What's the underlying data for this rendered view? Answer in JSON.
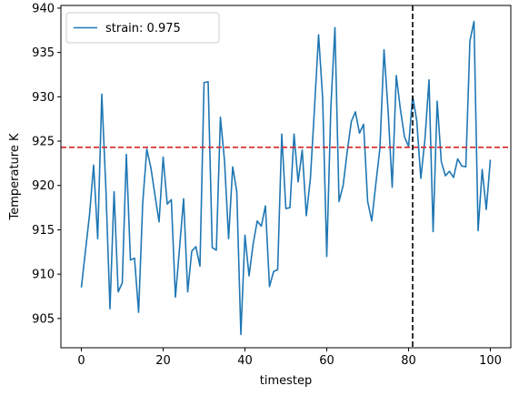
{
  "chart_data": {
    "type": "line",
    "title": "",
    "xlabel": "timestep",
    "ylabel": "Temperature K",
    "xlim": [
      -5,
      105
    ],
    "ylim": [
      901.7,
      940.3
    ],
    "xticks": [
      0,
      20,
      40,
      60,
      80,
      100
    ],
    "yticks": [
      905,
      910,
      915,
      920,
      925,
      930,
      935,
      940
    ],
    "grid": false,
    "legend_position": "upper-left",
    "series": [
      {
        "name": "strain: 0.975",
        "color": "#1f77b4",
        "x": [
          0,
          1,
          2,
          3,
          4,
          5,
          6,
          7,
          8,
          9,
          10,
          11,
          12,
          13,
          14,
          15,
          16,
          17,
          18,
          19,
          20,
          21,
          22,
          23,
          24,
          25,
          26,
          27,
          28,
          29,
          30,
          31,
          32,
          33,
          34,
          35,
          36,
          37,
          38,
          39,
          40,
          41,
          42,
          43,
          44,
          45,
          46,
          47,
          48,
          49,
          50,
          51,
          52,
          53,
          54,
          55,
          56,
          57,
          58,
          59,
          60,
          61,
          62,
          63,
          64,
          65,
          66,
          67,
          68,
          69,
          70,
          71,
          72,
          73,
          74,
          75,
          76,
          77,
          78,
          79,
          80,
          81,
          82,
          83,
          84,
          85,
          86,
          87,
          88,
          89,
          90,
          91,
          92,
          93,
          94,
          95,
          96,
          97,
          98,
          99,
          100
        ],
        "y": [
          908.5,
          912.6,
          916.7,
          922.3,
          914.0,
          930.3,
          919.6,
          906.1,
          919.3,
          908.0,
          909.0,
          923.5,
          911.6,
          911.8,
          905.7,
          918.0,
          924.1,
          922.0,
          918.9,
          915.9,
          923.2,
          917.9,
          918.4,
          907.4,
          912.9,
          918.5,
          908.0,
          912.6,
          913.1,
          910.9,
          931.6,
          931.7,
          913.0,
          912.7,
          927.7,
          922.8,
          914.0,
          922.1,
          919.3,
          903.2,
          914.4,
          909.8,
          913.4,
          916.0,
          915.4,
          917.7,
          908.6,
          910.3,
          910.5,
          925.8,
          917.4,
          917.5,
          925.8,
          920.4,
          924.0,
          916.6,
          920.8,
          928.7,
          937.0,
          929.8,
          912.0,
          928.8,
          937.8,
          918.2,
          920.0,
          923.8,
          927.2,
          928.3,
          925.9,
          926.9,
          918.2,
          916.0,
          920.2,
          924.2,
          935.3,
          928.4,
          919.8,
          932.4,
          928.6,
          925.5,
          924.4,
          930.1,
          927.3,
          920.8,
          925.2,
          931.9,
          914.8,
          929.5,
          922.7,
          921.1,
          921.6,
          920.9,
          923.0,
          922.2,
          922.1,
          936.3,
          938.5,
          914.9,
          921.8,
          917.3,
          922.9
        ]
      }
    ],
    "reference_lines": [
      {
        "orientation": "horizontal",
        "value": 924.3,
        "color": "#d62728",
        "style": "dashed"
      },
      {
        "orientation": "vertical",
        "value": 81,
        "color": "#000000",
        "style": "dashed"
      }
    ]
  }
}
